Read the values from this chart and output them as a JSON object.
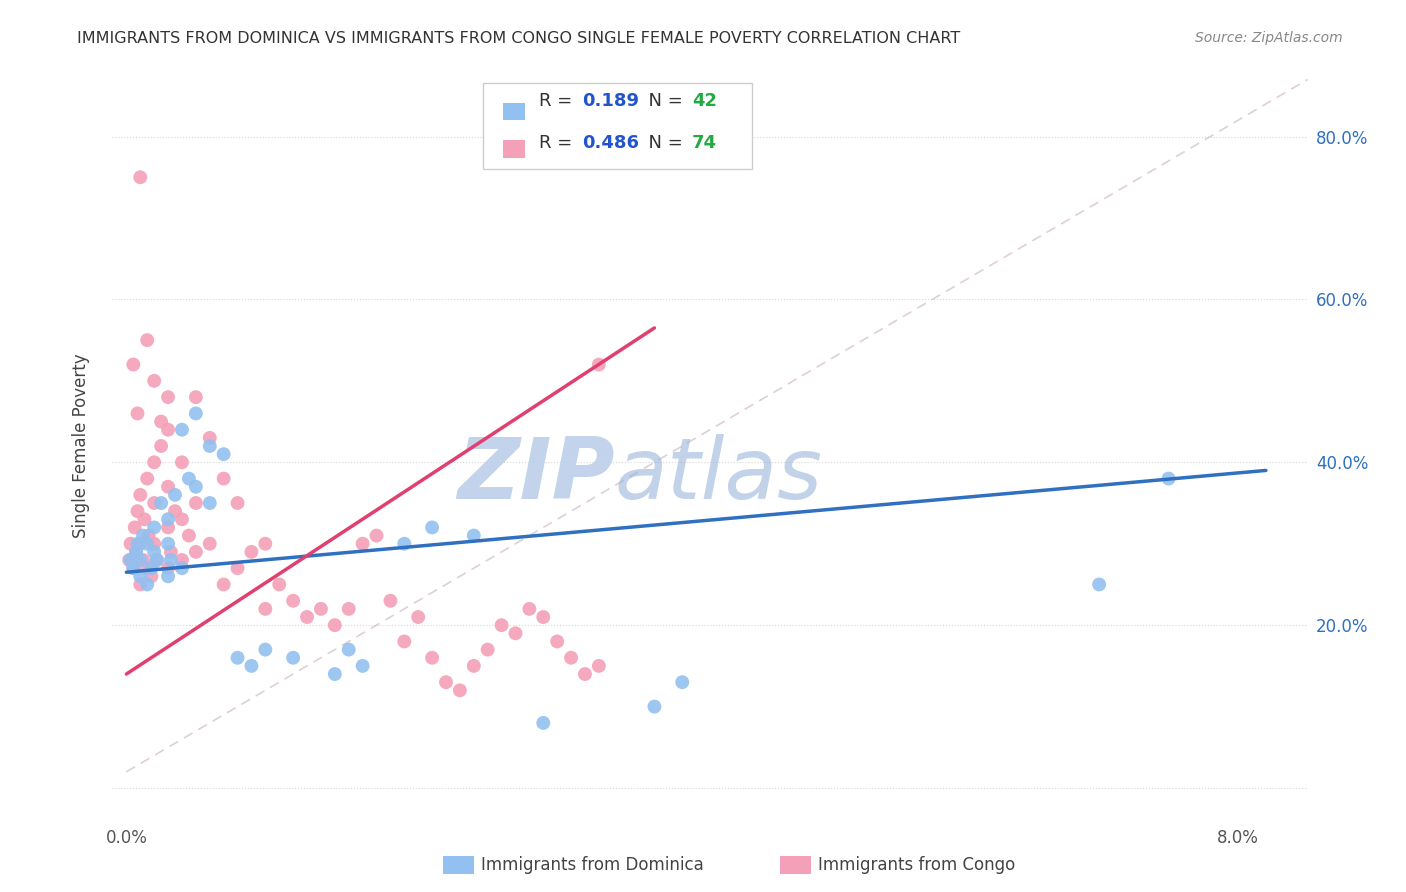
{
  "title": "IMMIGRANTS FROM DOMINICA VS IMMIGRANTS FROM CONGO SINGLE FEMALE POVERTY CORRELATION CHART",
  "source": "Source: ZipAtlas.com",
  "ylabel": "Single Female Poverty",
  "x_lim": [
    -0.001,
    0.085
  ],
  "y_lim": [
    -0.04,
    0.88
  ],
  "dominica_color": "#92c0f0",
  "congo_color": "#f4a0b8",
  "dominica_line_color": "#3070c0",
  "congo_line_color": "#e04070",
  "diag_line_color": "#d0a0b0",
  "dominica_R": "0.189",
  "dominica_N": "42",
  "congo_R": "0.486",
  "congo_N": "74",
  "legend_R_color": "#2255cc",
  "legend_N_color": "#22aa44",
  "watermark_zip_color": "#b8cce8",
  "watermark_atlas_color": "#90aed8",
  "dominica_points_x": [
    0.0003,
    0.0005,
    0.0007,
    0.0008,
    0.001,
    0.001,
    0.0012,
    0.0015,
    0.0015,
    0.0018,
    0.002,
    0.002,
    0.0022,
    0.0025,
    0.003,
    0.003,
    0.003,
    0.0032,
    0.0035,
    0.004,
    0.004,
    0.0045,
    0.005,
    0.005,
    0.006,
    0.006,
    0.007,
    0.008,
    0.009,
    0.01,
    0.012,
    0.015,
    0.016,
    0.017,
    0.02,
    0.022,
    0.025,
    0.03,
    0.038,
    0.04,
    0.07,
    0.075
  ],
  "dominica_points_y": [
    0.28,
    0.27,
    0.29,
    0.3,
    0.26,
    0.28,
    0.31,
    0.25,
    0.3,
    0.27,
    0.29,
    0.32,
    0.28,
    0.35,
    0.26,
    0.3,
    0.33,
    0.28,
    0.36,
    0.27,
    0.44,
    0.38,
    0.46,
    0.37,
    0.42,
    0.35,
    0.41,
    0.16,
    0.15,
    0.17,
    0.16,
    0.14,
    0.17,
    0.15,
    0.3,
    0.32,
    0.31,
    0.08,
    0.1,
    0.13,
    0.25,
    0.38
  ],
  "congo_points_x": [
    0.0002,
    0.0003,
    0.0005,
    0.0006,
    0.0007,
    0.0008,
    0.001,
    0.001,
    0.001,
    0.0012,
    0.0013,
    0.0015,
    0.0015,
    0.0016,
    0.0018,
    0.002,
    0.002,
    0.002,
    0.0022,
    0.0025,
    0.003,
    0.003,
    0.003,
    0.003,
    0.0032,
    0.0035,
    0.004,
    0.004,
    0.004,
    0.0045,
    0.005,
    0.005,
    0.005,
    0.006,
    0.006,
    0.007,
    0.007,
    0.008,
    0.008,
    0.009,
    0.01,
    0.01,
    0.011,
    0.012,
    0.013,
    0.014,
    0.015,
    0.016,
    0.017,
    0.018,
    0.019,
    0.02,
    0.021,
    0.022,
    0.023,
    0.024,
    0.025,
    0.026,
    0.027,
    0.028,
    0.029,
    0.03,
    0.031,
    0.032,
    0.033,
    0.034,
    0.0005,
    0.0008,
    0.001,
    0.0015,
    0.002,
    0.0025,
    0.003,
    0.034
  ],
  "congo_points_y": [
    0.28,
    0.3,
    0.27,
    0.32,
    0.29,
    0.34,
    0.25,
    0.3,
    0.36,
    0.28,
    0.33,
    0.27,
    0.38,
    0.31,
    0.26,
    0.3,
    0.35,
    0.4,
    0.28,
    0.42,
    0.27,
    0.32,
    0.37,
    0.44,
    0.29,
    0.34,
    0.28,
    0.33,
    0.4,
    0.31,
    0.29,
    0.35,
    0.48,
    0.3,
    0.43,
    0.25,
    0.38,
    0.27,
    0.35,
    0.29,
    0.3,
    0.22,
    0.25,
    0.23,
    0.21,
    0.22,
    0.2,
    0.22,
    0.3,
    0.31,
    0.23,
    0.18,
    0.21,
    0.16,
    0.13,
    0.12,
    0.15,
    0.17,
    0.2,
    0.19,
    0.22,
    0.21,
    0.18,
    0.16,
    0.14,
    0.15,
    0.52,
    0.46,
    0.75,
    0.55,
    0.5,
    0.45,
    0.48,
    0.52
  ]
}
